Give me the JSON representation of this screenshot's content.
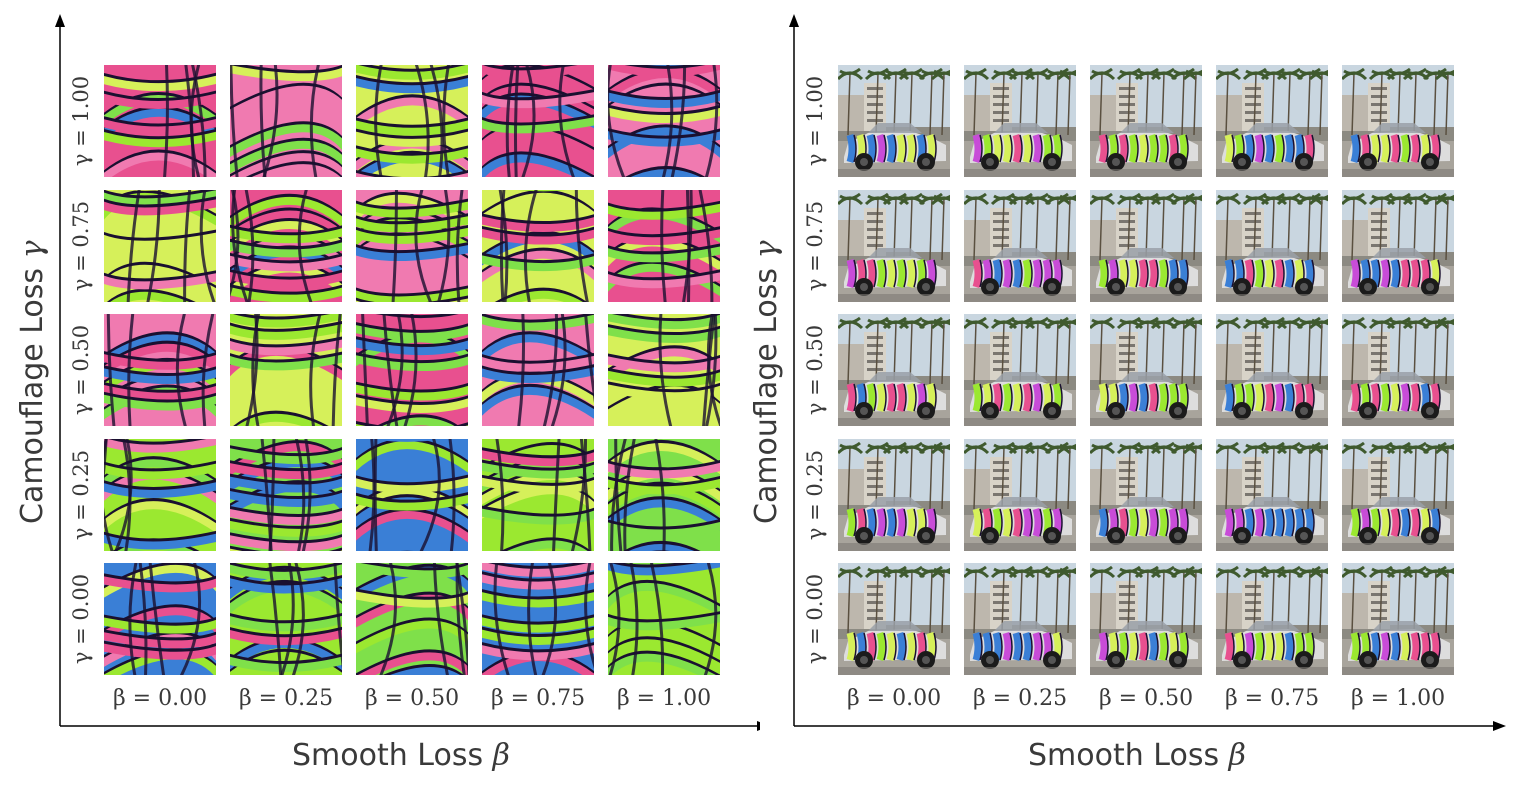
{
  "figure": {
    "panels": [
      {
        "id": "texture",
        "x_axis_label": "Smooth Loss",
        "x_axis_symbol": "β",
        "y_axis_label": "Camouflage Loss",
        "y_axis_symbol": "γ",
        "row_labels": [
          "γ = 1.00",
          "γ = 0.75",
          "γ = 0.50",
          "γ = 0.25",
          "γ = 0.00"
        ],
        "col_labels": [
          "β = 0.00",
          "β = 0.25",
          "β = 0.50",
          "β = 0.75",
          "β = 1.00"
        ],
        "image_kind": "texture"
      },
      {
        "id": "vehicle",
        "x_axis_label": "Smooth Loss",
        "x_axis_symbol": "β",
        "y_axis_label": "Camouflage Loss",
        "y_axis_symbol": "γ",
        "row_labels": [
          "γ = 1.00",
          "γ = 0.75",
          "γ = 0.50",
          "γ = 0.25",
          "γ = 0.00"
        ],
        "col_labels": [
          "β = 0.00",
          "β = 0.25",
          "β = 0.50",
          "β = 0.75",
          "β = 1.00"
        ],
        "image_kind": "car-scene"
      }
    ],
    "colors": {
      "axis": "#000000",
      "label": "#3a3a3a",
      "pink": "#e8508f",
      "green": "#9be830",
      "lime": "#d6f05a",
      "blue": "#3a7fd6",
      "dark": "#1a1030"
    }
  }
}
